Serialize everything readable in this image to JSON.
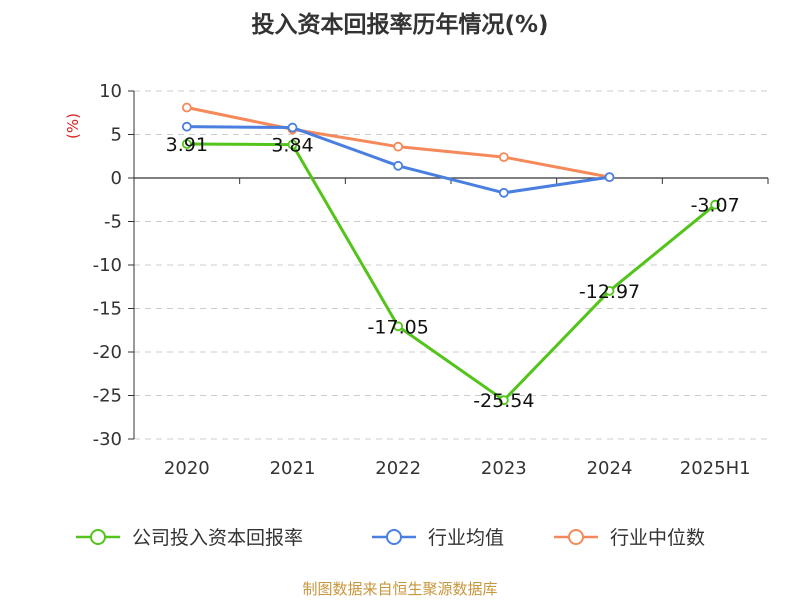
{
  "chart_data": {
    "type": "line",
    "title": "投入资本回报率历年情况(%)",
    "ylabel": "(%)",
    "categories": [
      "2020",
      "2021",
      "2022",
      "2023",
      "2024",
      "2025H1"
    ],
    "ylim": [
      -30,
      10
    ],
    "yticks": [
      "10",
      "5",
      "0",
      "-5",
      "-10",
      "-15",
      "-20",
      "-25",
      "-30"
    ],
    "grid": true,
    "legend_position": "bottom",
    "series": [
      {
        "name": "公司投入资本回报率",
        "color": "#52c41a",
        "values": [
          3.91,
          3.84,
          -17.05,
          -25.54,
          -12.97,
          -3.07
        ],
        "labels": [
          "3.91",
          "3.84",
          "-17.05",
          "-25.54",
          "-12.97",
          "-3.07"
        ]
      },
      {
        "name": "行业均值",
        "color": "#4a7fe0",
        "values": [
          5.9,
          5.8,
          1.4,
          -1.7,
          0.1,
          null
        ]
      },
      {
        "name": "行业中位数",
        "color": "#f5895a",
        "values": [
          8.1,
          5.6,
          3.6,
          2.4,
          0.1,
          null
        ]
      }
    ]
  },
  "source": "制图数据来自恒生聚源数据库"
}
